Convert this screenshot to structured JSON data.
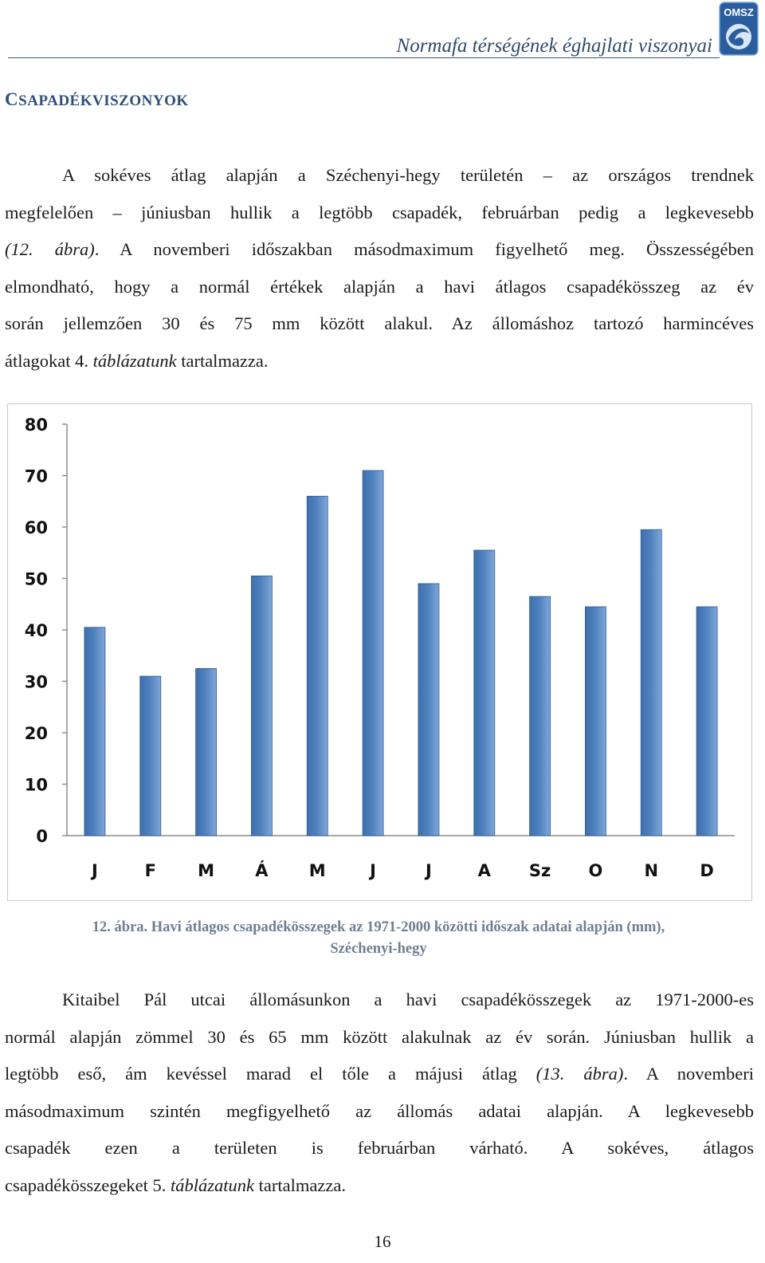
{
  "header": {
    "title": "Normafa térségének éghajlati viszonyai",
    "logo_text": "OMSZ"
  },
  "section": {
    "heading_first": "C",
    "heading_rest": "SAPADÉKVISZONYOK"
  },
  "paragraph1": {
    "lines": [
      "A sokéves átlag alapján a Széchenyi-hegy területén – az országos trendnek",
      "megfelelően – júniusban hullik a legtöbb csapadék, februárban pedig a legkevesebb",
      [
        [
          "(12. ábra)",
          true
        ],
        [
          ". A novemberi időszakban másodmaximum figyelhető meg. Összességében",
          false
        ]
      ],
      "elmondható, hogy a normál értékek alapján a havi átlagos csapadékösszeg az év",
      "során jellemzően 30 és 75 mm között alakul. Az állomáshoz tartozó harmincéves",
      [
        [
          "átlagokat 4. ",
          false
        ],
        [
          "táblázatunk",
          true
        ],
        [
          " tartalmazza.",
          false
        ]
      ]
    ]
  },
  "chart_data": {
    "type": "bar",
    "categories": [
      "J",
      "F",
      "M",
      "Á",
      "M",
      "J",
      "J",
      "A",
      "Sz",
      "O",
      "N",
      "D"
    ],
    "values": [
      40.5,
      31,
      32.5,
      50.5,
      66,
      71,
      49,
      55.5,
      46.5,
      44.5,
      59.5,
      44.5
    ],
    "yticks": [
      "0",
      "10",
      "20",
      "30",
      "40",
      "50",
      "60",
      "70",
      "80"
    ],
    "ylim": [
      0,
      80
    ],
    "grid": false,
    "bar_color": "#4f81bd",
    "title": "",
    "xlabel": "",
    "ylabel": ""
  },
  "caption": {
    "label": "12. ábra.",
    "text": " Havi átlagos csapadékösszegek az 1971-2000 közötti időszak adatai alapján (mm),",
    "line2": "Széchenyi-hegy"
  },
  "paragraph2": {
    "lines": [
      "Kitaibel Pál utcai állomásunkon a havi csapadékösszegek az 1971-2000-es",
      "normál alapján zömmel 30 és 65 mm között alakulnak az év során. Júniusban hullik a",
      [
        [
          "legtöbb eső, ám kevéssel marad el tőle a májusi átlag ",
          false
        ],
        [
          "(13. ábra)",
          true
        ],
        [
          ". A novemberi",
          false
        ]
      ],
      "másodmaximum szintén megfigyelhető az állomás adatai alapján. A legkevesebb",
      "csapadék ezen a területen is februárban várható. A sokéves, átlagos",
      [
        [
          "csapadékösszegeket 5. ",
          false
        ],
        [
          "táblázatunk",
          true
        ],
        [
          " tartalmazza.",
          false
        ]
      ]
    ]
  },
  "page": {
    "number": "16"
  }
}
